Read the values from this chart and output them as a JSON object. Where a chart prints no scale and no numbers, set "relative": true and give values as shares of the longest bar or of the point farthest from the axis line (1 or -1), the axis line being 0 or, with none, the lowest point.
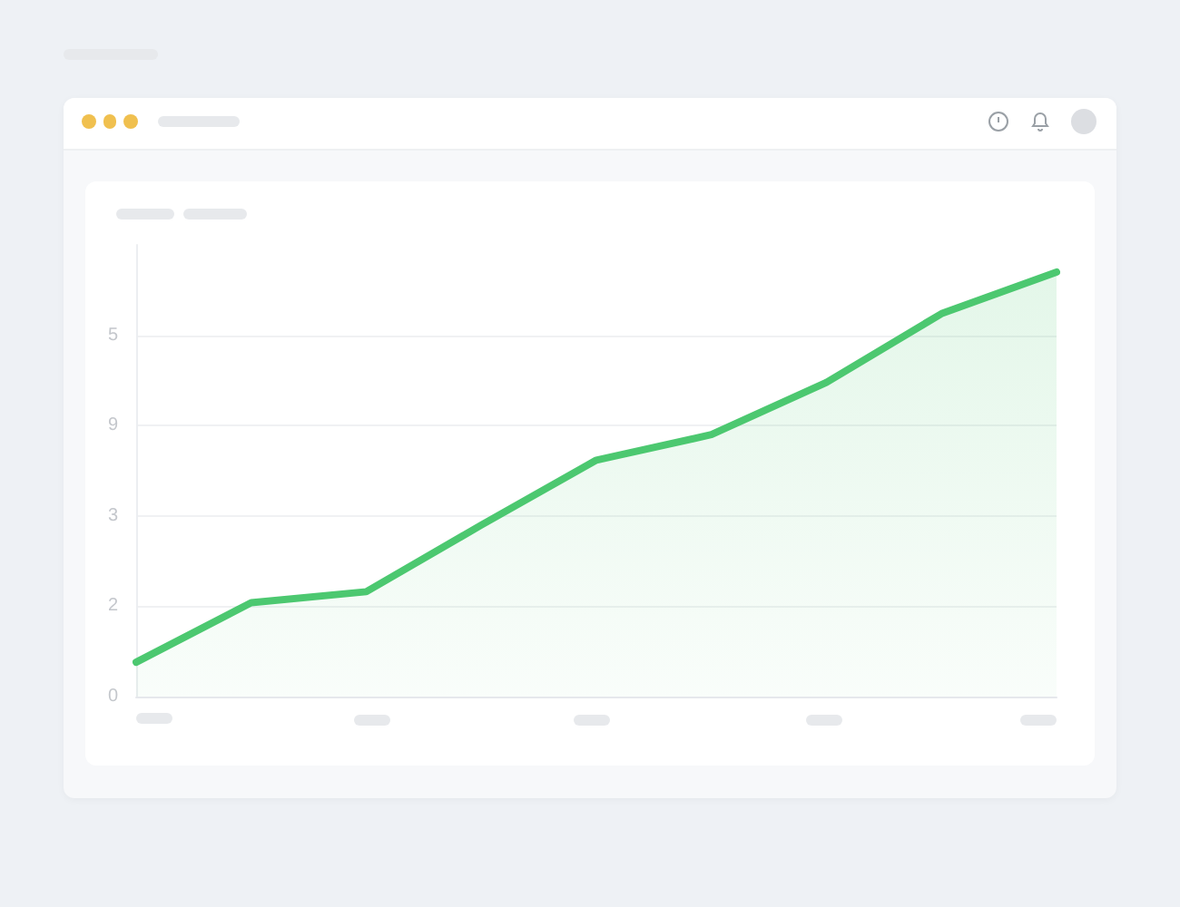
{
  "chart_data": {
    "type": "area",
    "relative": true,
    "categories": [
      null,
      null,
      null,
      null,
      null,
      null,
      null,
      null,
      null
    ],
    "values": [
      0.081,
      0.221,
      0.247,
      0.404,
      0.557,
      0.617,
      0.74,
      0.902,
      1
    ],
    "color": "#4cc870",
    "annotations": [
      "5",
      "9",
      "3",
      "2",
      "0"
    ],
    "grid": "y",
    "marker": "none"
  }
}
